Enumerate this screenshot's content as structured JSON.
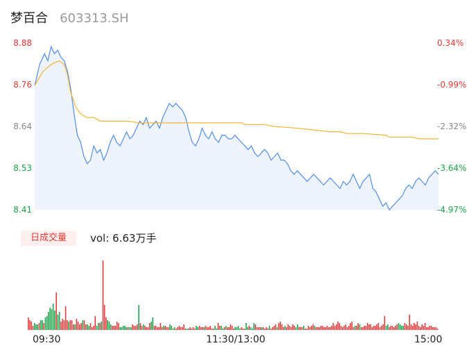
{
  "header": {
    "name": "梦百合",
    "code": "603313.SH"
  },
  "colors": {
    "price_line": "#4e8ef0",
    "avg_line": "#f5b335",
    "up": "#e53935",
    "down": "#1aa34a",
    "neutral": "#888888",
    "area_fill": "#eef3fc"
  },
  "volume_panel": {
    "tab_label": "日成交量",
    "readout_prefix": "vol: ",
    "readout_value": "6.63万手"
  },
  "chart_data": [
    {
      "type": "line",
      "title": "",
      "y_ticks": [
        "8.88",
        "8.76",
        "8.64",
        "8.53",
        "8.41"
      ],
      "y2_ticks": [
        "0.34%",
        "-0.99%",
        "-2.32%",
        "-3.64%",
        "-4.97%"
      ],
      "ylim": [
        8.41,
        8.88
      ],
      "x_ticks": [
        "09:30",
        "11:30/13:00",
        "15:00"
      ],
      "grid": false,
      "series": [
        {
          "key": "price",
          "points": [
            [
              0,
              8.76
            ],
            [
              3,
              8.82
            ],
            [
              6,
              8.85
            ],
            [
              8,
              8.83
            ],
            [
              10,
              8.87
            ],
            [
              12,
              8.85
            ],
            [
              14,
              8.86
            ],
            [
              16,
              8.84
            ],
            [
              18,
              8.83
            ],
            [
              20,
              8.8
            ],
            [
              22,
              8.75
            ],
            [
              24,
              8.68
            ],
            [
              26,
              8.62
            ],
            [
              28,
              8.6
            ],
            [
              30,
              8.56
            ],
            [
              32,
              8.54
            ],
            [
              34,
              8.55
            ],
            [
              36,
              8.59
            ],
            [
              38,
              8.57
            ],
            [
              40,
              8.58
            ],
            [
              42,
              8.55
            ],
            [
              44,
              8.57
            ],
            [
              46,
              8.6
            ],
            [
              48,
              8.62
            ],
            [
              50,
              8.6
            ],
            [
              52,
              8.59
            ],
            [
              54,
              8.61
            ],
            [
              56,
              8.63
            ],
            [
              58,
              8.61
            ],
            [
              60,
              8.62
            ],
            [
              62,
              8.64
            ],
            [
              64,
              8.66
            ],
            [
              66,
              8.65
            ],
            [
              68,
              8.67
            ],
            [
              70,
              8.64
            ],
            [
              72,
              8.65
            ],
            [
              74,
              8.66
            ],
            [
              76,
              8.64
            ],
            [
              78,
              8.67
            ],
            [
              80,
              8.69
            ],
            [
              82,
              8.71
            ],
            [
              84,
              8.7
            ],
            [
              86,
              8.71
            ],
            [
              88,
              8.7
            ],
            [
              90,
              8.69
            ],
            [
              92,
              8.67
            ],
            [
              94,
              8.63
            ],
            [
              96,
              8.6
            ],
            [
              98,
              8.59
            ],
            [
              100,
              8.61
            ],
            [
              102,
              8.64
            ],
            [
              104,
              8.62
            ],
            [
              106,
              8.61
            ],
            [
              108,
              8.63
            ],
            [
              110,
              8.61
            ],
            [
              112,
              8.6
            ],
            [
              114,
              8.62
            ],
            [
              116,
              8.62
            ],
            [
              118,
              8.61
            ],
            [
              120,
              8.61
            ],
            [
              122,
              8.62
            ],
            [
              124,
              8.61
            ],
            [
              126,
              8.6
            ],
            [
              128,
              8.59
            ],
            [
              130,
              8.58
            ],
            [
              132,
              8.59
            ],
            [
              134,
              8.57
            ],
            [
              136,
              8.56
            ],
            [
              138,
              8.57
            ],
            [
              140,
              8.58
            ],
            [
              142,
              8.57
            ],
            [
              144,
              8.55
            ],
            [
              146,
              8.56
            ],
            [
              148,
              8.57
            ],
            [
              150,
              8.55
            ],
            [
              152,
              8.55
            ],
            [
              154,
              8.54
            ],
            [
              156,
              8.52
            ],
            [
              158,
              8.51
            ],
            [
              160,
              8.52
            ],
            [
              162,
              8.51
            ],
            [
              164,
              8.5
            ],
            [
              166,
              8.49
            ],
            [
              168,
              8.5
            ],
            [
              170,
              8.51
            ],
            [
              172,
              8.5
            ],
            [
              174,
              8.49
            ],
            [
              176,
              8.48
            ],
            [
              178,
              8.49
            ],
            [
              180,
              8.5
            ],
            [
              182,
              8.49
            ],
            [
              184,
              8.48
            ],
            [
              186,
              8.47
            ],
            [
              188,
              8.49
            ],
            [
              190,
              8.48
            ],
            [
              192,
              8.49
            ],
            [
              194,
              8.51
            ],
            [
              196,
              8.49
            ],
            [
              198,
              8.47
            ],
            [
              200,
              8.49
            ],
            [
              202,
              8.5
            ],
            [
              204,
              8.51
            ],
            [
              206,
              8.47
            ],
            [
              208,
              8.46
            ],
            [
              210,
              8.44
            ],
            [
              212,
              8.42
            ],
            [
              214,
              8.43
            ],
            [
              216,
              8.41
            ],
            [
              218,
              8.42
            ],
            [
              220,
              8.43
            ],
            [
              222,
              8.44
            ],
            [
              224,
              8.45
            ],
            [
              226,
              8.47
            ],
            [
              228,
              8.48
            ],
            [
              230,
              8.47
            ],
            [
              232,
              8.49
            ],
            [
              234,
              8.5
            ],
            [
              236,
              8.49
            ],
            [
              238,
              8.48
            ],
            [
              240,
              8.5
            ],
            [
              242,
              8.51
            ],
            [
              244,
              8.52
            ],
            [
              246,
              8.51
            ]
          ]
        },
        {
          "key": "average",
          "points": [
            [
              0,
              8.76
            ],
            [
              5,
              8.8
            ],
            [
              10,
              8.82
            ],
            [
              15,
              8.83
            ],
            [
              18,
              8.82
            ],
            [
              20,
              8.79
            ],
            [
              22,
              8.74
            ],
            [
              25,
              8.7
            ],
            [
              28,
              8.68
            ],
            [
              32,
              8.67
            ],
            [
              36,
              8.67
            ],
            [
              40,
              8.66
            ],
            [
              48,
              8.66
            ],
            [
              56,
              8.66
            ],
            [
              64,
              8.655
            ],
            [
              70,
              8.655
            ],
            [
              80,
              8.655
            ],
            [
              90,
              8.655
            ],
            [
              100,
              8.655
            ],
            [
              110,
              8.655
            ],
            [
              120,
              8.655
            ],
            [
              126,
              8.655
            ],
            [
              128,
              8.65
            ],
            [
              140,
              8.65
            ],
            [
              146,
              8.645
            ],
            [
              160,
              8.64
            ],
            [
              170,
              8.635
            ],
            [
              180,
              8.63
            ],
            [
              186,
              8.63
            ],
            [
              190,
              8.625
            ],
            [
              200,
              8.625
            ],
            [
              214,
              8.62
            ],
            [
              216,
              8.615
            ],
            [
              230,
              8.615
            ],
            [
              234,
              8.61
            ],
            [
              246,
              8.61
            ]
          ]
        }
      ]
    },
    {
      "type": "bar",
      "title": "",
      "series_name": "日成交量",
      "values": [
        9,
        7,
        6,
        3,
        5,
        4,
        4,
        5,
        7,
        7,
        5,
        9,
        10,
        13,
        16,
        15,
        19,
        14,
        27,
        11,
        13,
        6,
        8,
        7,
        17,
        7,
        6,
        7,
        7,
        4,
        4,
        8,
        6,
        4,
        5,
        7,
        7,
        4,
        4,
        3,
        5,
        2,
        3,
        10,
        3,
        5,
        5,
        6,
        50,
        18,
        9,
        7,
        6,
        4,
        3,
        3,
        3,
        6,
        5,
        2,
        2,
        3,
        3,
        2,
        2,
        2,
        2,
        4,
        3,
        3,
        4,
        18,
        5,
        3,
        4,
        3,
        2,
        2,
        5,
        6,
        9,
        3,
        3,
        2,
        2,
        5,
        2,
        3,
        3,
        2,
        2,
        4,
        3,
        1,
        2,
        1,
        2,
        3,
        2,
        2,
        4,
        1,
        1,
        1,
        2,
        1,
        2,
        1,
        3,
        2,
        3,
        2,
        2,
        2,
        3,
        2,
        2,
        3,
        1,
        1,
        3,
        1,
        5,
        3,
        3,
        1,
        2,
        3,
        2,
        2,
        4,
        3,
        1,
        2,
        2,
        3,
        1,
        2,
        1,
        1,
        5,
        2,
        3,
        2,
        1,
        5,
        4,
        2,
        2,
        2,
        2,
        2,
        1,
        2,
        1,
        3,
        1,
        2,
        3,
        4,
        2,
        5,
        6,
        4,
        2,
        3,
        2,
        4,
        3,
        2,
        4,
        3,
        2,
        4,
        2,
        2,
        2,
        3,
        1,
        1,
        3,
        2,
        3,
        4,
        3,
        2,
        2,
        2,
        3,
        3,
        2,
        2,
        3,
        2,
        2,
        3,
        5,
        3,
        4,
        6,
        5,
        3,
        2,
        3,
        4,
        2,
        3,
        5,
        6,
        2,
        3,
        3,
        5,
        4,
        2,
        2,
        3,
        3,
        5,
        4,
        4,
        2,
        3,
        3,
        4,
        5,
        2,
        3,
        4,
        10,
        3,
        4,
        2,
        3,
        3,
        2,
        3,
        4,
        5,
        4,
        3,
        3,
        5,
        4,
        3,
        11,
        4,
        3,
        5,
        4,
        6,
        3,
        2,
        4,
        3,
        5,
        2,
        2,
        3,
        3,
        2,
        2,
        2,
        1
      ],
      "directions": "uuuuddduddudddddddudduuuuuduuuduuuuduudduuuudduduuuddduuuuudddddudduuuuduuduuuudduuuuuuduuudduduuuuuuudduuuudduuuduuuuuudduudduduuuuudddduuudduddduuuuduuuuduuuuduuuuduuuuuudduuuduuuuuuduuuuuuuuuuuuuuuuuuuuuuuuuduuduuuuuuuuuuuuuuuudduuuuuudddduuuuuuuuuuuuuuuuuuuuuuuuuuuuuuuuuuuuuu"
    }
  ]
}
